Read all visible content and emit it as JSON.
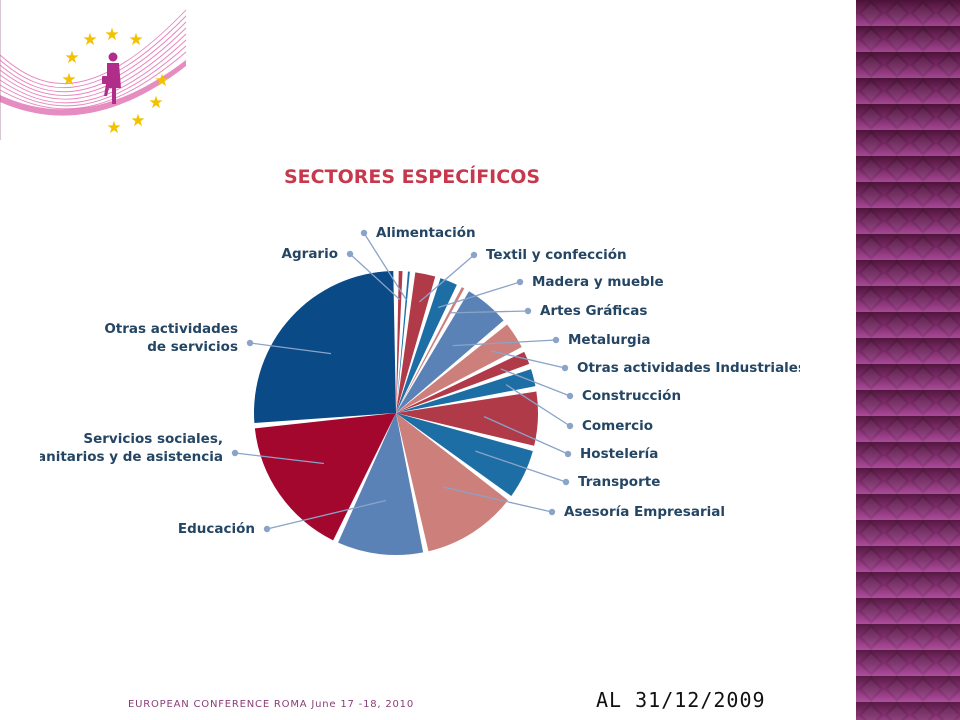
{
  "footer": {
    "conference": "EUROPEAN CONFERENCE ROMA June 17 -18, 2010",
    "date": "AL 31/12/2009"
  },
  "logo": {
    "icon": "eu-stars-woman-logo"
  },
  "colors": {
    "band_dark": "#4a1236",
    "band_light": "#b04fa0",
    "navy": "#0a4a86",
    "steel": "#5a82b6",
    "rose": "#cd7f7c",
    "crimson": "#b03a48",
    "wine": "#a3072e",
    "ocean": "#1e6ea6",
    "title": "#c8384c",
    "label": "#244563",
    "leader": "#8aa3c8"
  },
  "chart_data": {
    "type": "pie",
    "title": "SECTORES ESPECÍFICOS",
    "categories": [
      {
        "name": "Agrario",
        "lines": [
          "Agrario"
        ],
        "value": 1.0,
        "color": "#b03a48"
      },
      {
        "name": "Alimentación",
        "lines": [
          "Alimentación"
        ],
        "value": 0.8,
        "color": "#1e6ea6"
      },
      {
        "name": "Textil y confección",
        "lines": [
          "Textil y confección"
        ],
        "value": 2.8,
        "color": "#b03a48"
      },
      {
        "name": "Madera y mueble",
        "lines": [
          "Madera y mueble"
        ],
        "value": 2.5,
        "color": "#1e6ea6"
      },
      {
        "name": "Artes Gráficas",
        "lines": [
          "Artes Gráficas"
        ],
        "value": 0.9,
        "color": "#cd7f7c"
      },
      {
        "name": "Metalurgia",
        "lines": [
          "Metalurgia"
        ],
        "value": 5.5,
        "color": "#5a82b6"
      },
      {
        "name": "Otras actividades Industriales",
        "lines": [
          "Otras actividades Industriales"
        ],
        "value": 3.5,
        "color": "#cd7f7c"
      },
      {
        "name": "Construcción",
        "lines": [
          "Construcción"
        ],
        "value": 2.0,
        "color": "#b03a48"
      },
      {
        "name": "Comercio",
        "lines": [
          "Comercio"
        ],
        "value": 2.5,
        "color": "#1e6ea6"
      },
      {
        "name": "Hostelería",
        "lines": [
          "Hostelería"
        ],
        "value": 6.5,
        "color": "#b03a48"
      },
      {
        "name": "Transporte",
        "lines": [
          "Transporte"
        ],
        "value": 6.0,
        "color": "#1e6ea6"
      },
      {
        "name": "Asesoría Empresarial",
        "lines": [
          "Asesoría Empresarial"
        ],
        "value": 11.0,
        "color": "#cd7f7c"
      },
      {
        "name": "Educación",
        "lines": [
          "Educación"
        ],
        "value": 10.0,
        "color": "#5a82b6"
      },
      {
        "name": "Servicios sociales, sanitarios y de asistencia",
        "lines": [
          "Servicios sociales,",
          "sanitarios y de asistencia"
        ],
        "value": 16.0,
        "color": "#a3072e"
      },
      {
        "name": "Otras actividades de servicios",
        "lines": [
          "Otras actividades",
          "de servicios"
        ],
        "value": 25.5,
        "color": "#0a4a86"
      }
    ],
    "legend": "none",
    "data_labels": "outside with leader lines"
  }
}
